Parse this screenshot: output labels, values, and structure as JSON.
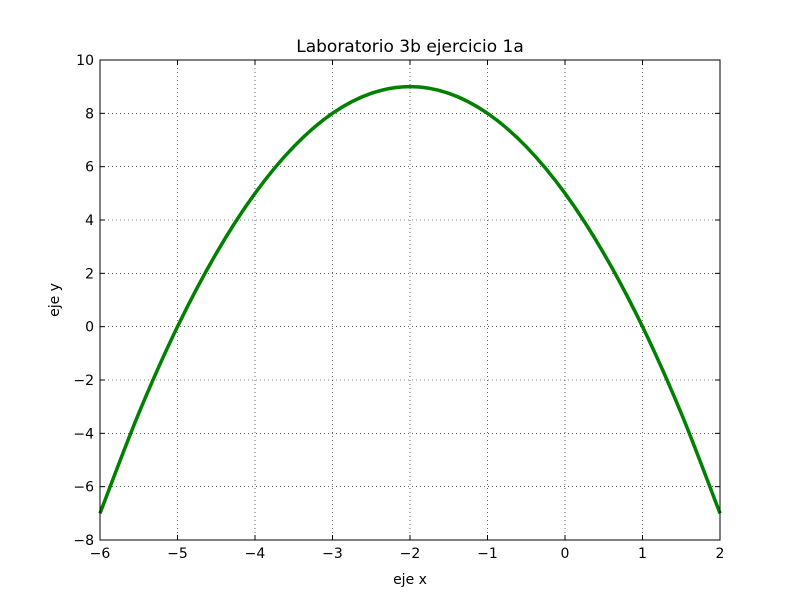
{
  "chart_data": {
    "type": "line",
    "title": "Laboratorio 3b ejercicio 1a",
    "xlabel": "eje x",
    "ylabel": "eje y",
    "xlim": [
      -6,
      2
    ],
    "ylim": [
      -8,
      10
    ],
    "xticks": [
      -6,
      -5,
      -4,
      -3,
      -2,
      -1,
      0,
      1,
      2
    ],
    "yticks": [
      -8,
      -6,
      -4,
      -2,
      0,
      2,
      4,
      6,
      8,
      10
    ],
    "xtick_labels": [
      "−6",
      "−5",
      "−4",
      "−3",
      "−2",
      "−1",
      "0",
      "1",
      "2"
    ],
    "ytick_labels": [
      "−8",
      "−6",
      "−4",
      "−2",
      "0",
      "2",
      "4",
      "6",
      "8",
      "10"
    ],
    "grid": true,
    "grid_style": "dotted",
    "series": [
      {
        "color": "#008000",
        "x": [
          -6,
          -5.5,
          -5,
          -4.5,
          -4,
          -3.5,
          -3,
          -2.5,
          -2,
          -1.5,
          -1,
          -0.5,
          0,
          0.5,
          1,
          1.5,
          2
        ],
        "y": [
          -7,
          -3.25,
          0,
          2.75,
          5,
          6.75,
          8,
          8.75,
          9,
          8.75,
          8,
          6.75,
          5,
          2.75,
          0,
          -3.25,
          -7
        ]
      }
    ]
  }
}
